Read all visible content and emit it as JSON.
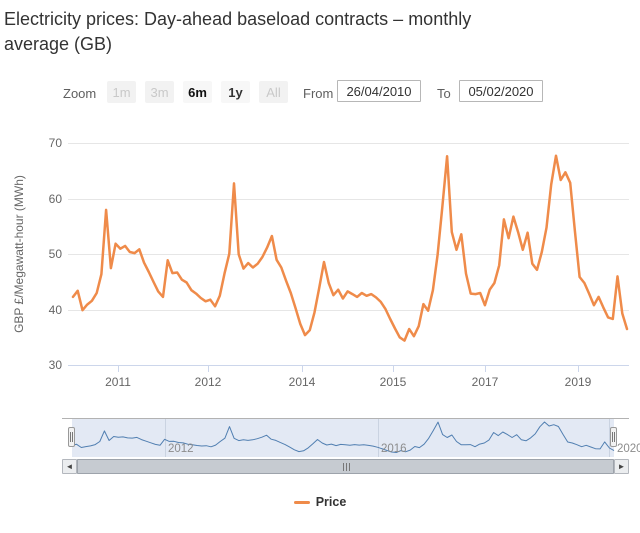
{
  "title": {
    "line1": "Electricity prices: Day-ahead baseload contracts – monthly",
    "line2": "average (GB)"
  },
  "range_selector": {
    "zoom_label": "Zoom",
    "buttons": [
      {
        "label": "1m",
        "state": "disabled"
      },
      {
        "label": "3m",
        "state": "disabled"
      },
      {
        "label": "6m",
        "state": "selected"
      },
      {
        "label": "1y",
        "state": "enabled"
      },
      {
        "label": "All",
        "state": "disabled"
      }
    ],
    "from_label": "From",
    "from_value": "26/04/2010",
    "to_label": "To",
    "to_value": "05/02/2020"
  },
  "chart_data": {
    "type": "line",
    "title": "Electricity prices: Day-ahead baseload contracts – monthly average (GB)",
    "ylabel": "GBP £/Megawatt-hour (MWh)",
    "ylim": [
      30,
      70
    ],
    "grid": "horizontal",
    "frequency": "monthly",
    "x_range": {
      "start": "26/04/2010",
      "end": "05/02/2020"
    },
    "y_ticklabels": [
      "70",
      "60",
      "50",
      "40",
      "30"
    ],
    "x_ticklabels": [
      "2011",
      "2012",
      "2014",
      "2015",
      "2017",
      "2019"
    ],
    "navigator_ticklabels": [
      "2012",
      "2016",
      "2020"
    ],
    "series": [
      {
        "name": "Price",
        "color": "#ef8b4a",
        "values": [
          42.3,
          43.4,
          39.9,
          40.9,
          41.6,
          43.0,
          46.4,
          58.0,
          47.5,
          51.9,
          51.0,
          51.5,
          50.4,
          50.2,
          50.9,
          48.5,
          46.8,
          45.0,
          43.3,
          42.3,
          48.9,
          46.6,
          46.7,
          45.4,
          44.9,
          43.5,
          42.9,
          42.1,
          41.5,
          41.8,
          40.6,
          42.5,
          46.5,
          50.1,
          62.8,
          50.0,
          47.4,
          48.4,
          47.6,
          48.3,
          49.5,
          51.2,
          53.3,
          49.0,
          47.6,
          45.2,
          43.0,
          40.3,
          37.4,
          35.4,
          36.3,
          39.5,
          43.9,
          48.6,
          44.8,
          42.6,
          43.6,
          42.0,
          43.3,
          42.8,
          42.3,
          43.0,
          42.5,
          42.8,
          42.2,
          41.4,
          40.1,
          38.3,
          36.6,
          35.0,
          34.4,
          36.5,
          35.2,
          37.0,
          41.0,
          39.8,
          43.5,
          49.9,
          58.5,
          67.7,
          54.0,
          50.8,
          53.6,
          46.5,
          42.9,
          42.8,
          43.0,
          40.8,
          43.6,
          44.8,
          48.0,
          56.3,
          52.9,
          56.8,
          54.0,
          50.8,
          53.9,
          48.3,
          47.2,
          50.4,
          54.8,
          62.6,
          67.8,
          63.4,
          64.8,
          62.9,
          54.2,
          45.9,
          44.8,
          42.9,
          40.8,
          42.3,
          40.4,
          38.6,
          38.3,
          46.0,
          39.3,
          36.5
        ]
      }
    ]
  },
  "legend": {
    "items": [
      {
        "label": "Price",
        "color": "#ef8b4a"
      }
    ]
  },
  "scrollbar": {
    "left_arrow": "◄",
    "right_arrow": "►"
  },
  "colors": {
    "series_line": "#ef8b4a",
    "navigator_line": "#4d7eae",
    "navigator_mask": "rgba(102,133,194,0.18)",
    "gridline": "#e6e6e6",
    "axis_line": "#ccd6eb",
    "axis_label": "#666666",
    "title_text": "#333333"
  }
}
